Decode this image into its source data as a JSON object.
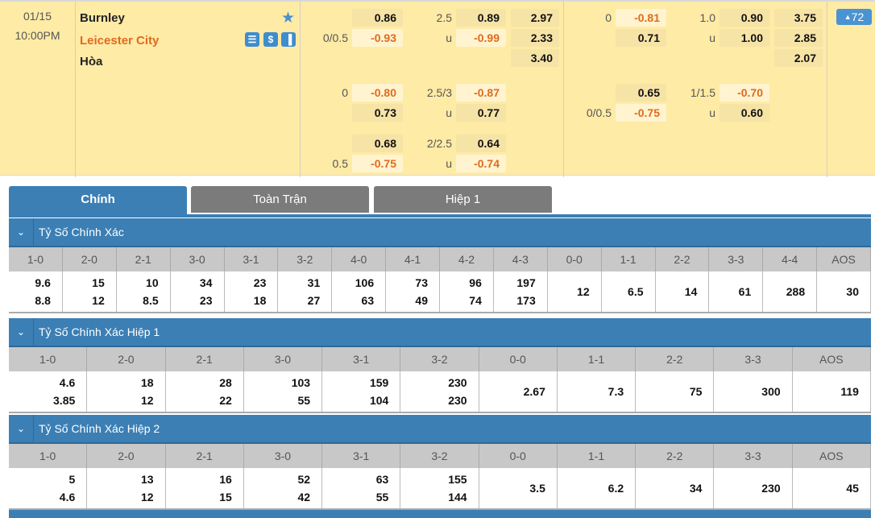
{
  "match": {
    "date": "01/15",
    "time": "10:00PM",
    "home": "Burnley",
    "away": "Leicester City",
    "draw": "Hòa",
    "badge_count": "72",
    "home_color": "#111111",
    "away_color": "#e06a1f"
  },
  "odds_ft": [
    {
      "l1": "",
      "v1": "0.86",
      "l2": "2.5",
      "v2": "0.89",
      "v3": "2.97"
    },
    {
      "l1": "0/0.5",
      "v1": "-0.93",
      "l2": "u",
      "v2": "-0.99",
      "v3": "2.33"
    },
    {
      "v3": "3.40"
    },
    {
      "l1": "0",
      "v1": "-0.80",
      "l2": "2.5/3",
      "v2": "-0.87"
    },
    {
      "l1": "",
      "v1": "0.73",
      "l2": "u",
      "v2": "0.77"
    },
    {
      "l1": "",
      "v1": "0.68",
      "l2": "2/2.5",
      "v2": "0.64"
    },
    {
      "l1": "0.5",
      "v1": "-0.75",
      "l2": "u",
      "v2": "-0.74"
    }
  ],
  "odds_h1": [
    {
      "l1": "0",
      "v1": "-0.81",
      "l2": "1.0",
      "v2": "0.90",
      "v3": "3.75"
    },
    {
      "l1": "",
      "v1": "0.71",
      "l2": "u",
      "v2": "1.00",
      "v3": "2.85"
    },
    {
      "v3": "2.07"
    },
    {
      "l1": "",
      "v1": "0.65",
      "l2": "1/1.5",
      "v2": "-0.70"
    },
    {
      "l1": "0/0.5",
      "v1": "-0.75",
      "l2": "u",
      "v2": "0.60"
    }
  ],
  "tabs": [
    "Chính",
    "Toàn Trận",
    "Hiệp 1"
  ],
  "sections": [
    {
      "title": "Tỷ Số Chính Xác",
      "headers": [
        "1-0",
        "2-0",
        "2-1",
        "3-0",
        "3-1",
        "3-2",
        "4-0",
        "4-1",
        "4-2",
        "4-3",
        "0-0",
        "1-1",
        "2-2",
        "3-3",
        "4-4",
        "AOS"
      ],
      "cells": [
        [
          "9.6",
          "8.8"
        ],
        [
          "15",
          "12"
        ],
        [
          "10",
          "8.5"
        ],
        [
          "34",
          "23"
        ],
        [
          "23",
          "18"
        ],
        [
          "31",
          "27"
        ],
        [
          "106",
          "63"
        ],
        [
          "73",
          "49"
        ],
        [
          "96",
          "74"
        ],
        [
          "197",
          "173"
        ],
        [
          "12"
        ],
        [
          "6.5"
        ],
        [
          "14"
        ],
        [
          "61"
        ],
        [
          "288"
        ],
        [
          "30"
        ]
      ]
    },
    {
      "title": "Tỷ Số Chính Xác Hiệp 1",
      "headers": [
        "1-0",
        "2-0",
        "2-1",
        "3-0",
        "3-1",
        "3-2",
        "0-0",
        "1-1",
        "2-2",
        "3-3",
        "AOS"
      ],
      "cells": [
        [
          "4.6",
          "3.85"
        ],
        [
          "18",
          "12"
        ],
        [
          "28",
          "22"
        ],
        [
          "103",
          "55"
        ],
        [
          "159",
          "104"
        ],
        [
          "230",
          "230"
        ],
        [
          "2.67"
        ],
        [
          "7.3"
        ],
        [
          "75"
        ],
        [
          "300"
        ],
        [
          "119"
        ]
      ]
    },
    {
      "title": "Tỷ Số Chính Xác Hiệp 2",
      "headers": [
        "1-0",
        "2-0",
        "2-1",
        "3-0",
        "3-1",
        "3-2",
        "0-0",
        "1-1",
        "2-2",
        "3-3",
        "AOS"
      ],
      "cells": [
        [
          "5",
          "4.6"
        ],
        [
          "13",
          "12"
        ],
        [
          "16",
          "15"
        ],
        [
          "52",
          "42"
        ],
        [
          "63",
          "55"
        ],
        [
          "155",
          "144"
        ],
        [
          "3.5"
        ],
        [
          "6.2"
        ],
        [
          "34"
        ],
        [
          "230"
        ],
        [
          "45"
        ]
      ]
    }
  ]
}
